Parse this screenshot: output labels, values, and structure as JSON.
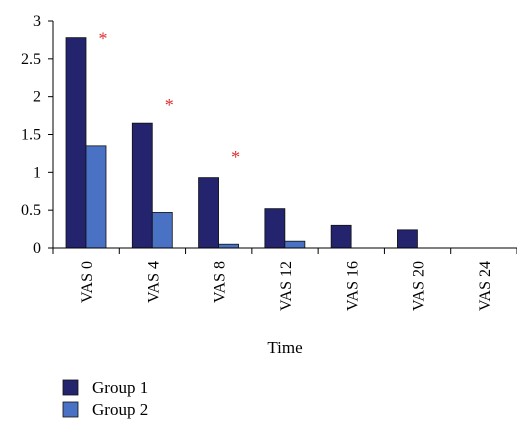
{
  "chart_data": {
    "type": "bar",
    "title": "",
    "xlabel": "Time",
    "ylabel": "",
    "categories": [
      "VAS 0",
      "VAS 4",
      "VAS 8",
      "VAS 12",
      "VAS 16",
      "VAS 20",
      "VAS 24"
    ],
    "series": [
      {
        "name": "Group 1",
        "values": [
          2.78,
          1.65,
          0.93,
          0.52,
          0.3,
          0.24,
          0
        ],
        "color": "#23236e"
      },
      {
        "name": "Group 2",
        "values": [
          1.35,
          0.47,
          0.05,
          0.09,
          0,
          0,
          0
        ],
        "color": "#4a72c4"
      }
    ],
    "ylim": [
      0,
      3
    ],
    "yticks": [
      "0",
      "0.5",
      "1",
      "1.5",
      "2",
      "2.5",
      "3"
    ],
    "yticks_values": [
      0,
      0.5,
      1,
      1.5,
      2,
      2.5,
      3
    ],
    "significance_markers": [
      {
        "category": "VAS 0",
        "symbol": "*",
        "y": 2.85
      },
      {
        "category": "VAS 4",
        "symbol": "*",
        "y": 1.97
      },
      {
        "category": "VAS 8",
        "symbol": "*",
        "y": 1.28
      }
    ],
    "marker_color": "#e03030",
    "grid": false,
    "legend_position": "bottom-left"
  }
}
